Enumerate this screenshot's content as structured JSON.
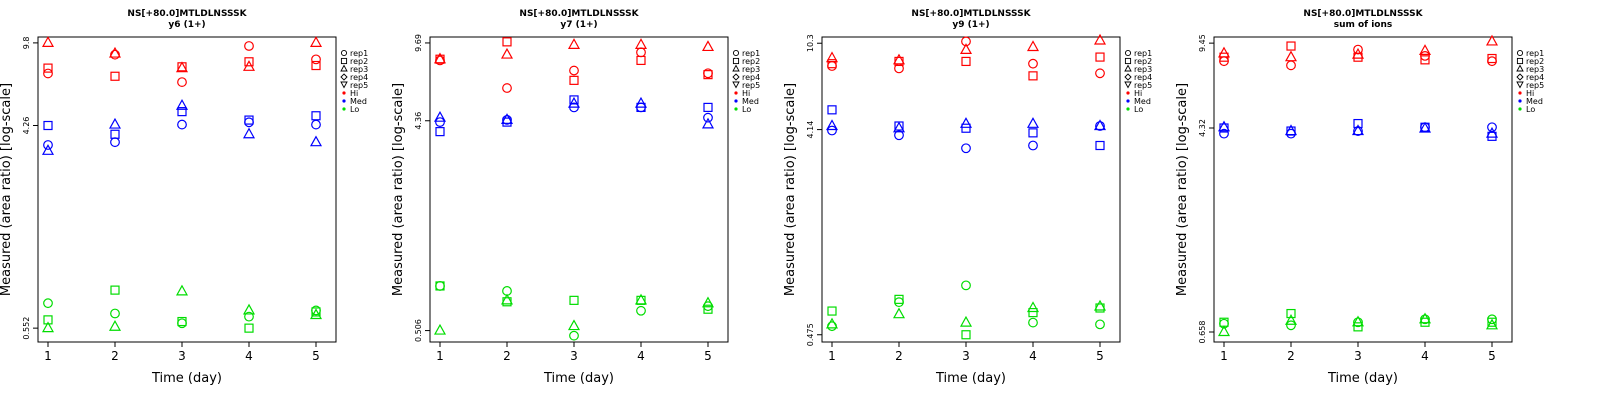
{
  "colors": {
    "Hi": "#ff0000",
    "Med": "#0000ff",
    "Lo": "#00dd00"
  },
  "legend": {
    "placement": "right",
    "reps": [
      {
        "label": "rep1",
        "shape": "circle"
      },
      {
        "label": "rep2",
        "shape": "square"
      },
      {
        "label": "rep3",
        "shape": "triangle-up"
      },
      {
        "label": "rep4",
        "shape": "diamond"
      },
      {
        "label": "rep5",
        "shape": "triangle-down"
      }
    ],
    "groups": [
      "Hi",
      "Med",
      "Lo"
    ]
  },
  "chart_data": [
    {
      "type": "scatter",
      "title": "NS[+80.0]MTLDLNSSSK",
      "subtitle": "y6 (1+)",
      "xlabel": "Time (day)",
      "ylabel": "Measured (area ratio) [log-scale]",
      "log_y": true,
      "x_ticks": [
        1,
        2,
        3,
        4,
        5
      ],
      "y_ticks": [
        0.552,
        4.26,
        9.8
      ],
      "ylim": [
        0.48,
        10.4
      ],
      "grid": false,
      "series": [
        {
          "name": "rep1",
          "group": "Hi",
          "x": [
            1,
            2,
            3,
            4,
            5
          ],
          "y": [
            7.2,
            8.7,
            6.6,
            9.5,
            8.3
          ]
        },
        {
          "name": "rep2",
          "group": "Hi",
          "x": [
            1,
            2,
            3,
            4,
            5
          ],
          "y": [
            7.6,
            7.0,
            7.7,
            8.1,
            7.8
          ]
        },
        {
          "name": "rep3",
          "group": "Hi",
          "x": [
            1,
            2,
            3,
            4,
            5
          ],
          "y": [
            9.8,
            8.8,
            7.6,
            7.7,
            9.8
          ]
        },
        {
          "name": "rep1",
          "group": "Med",
          "x": [
            1,
            2,
            3,
            4,
            5
          ],
          "y": [
            3.5,
            3.6,
            4.3,
            4.4,
            4.3
          ]
        },
        {
          "name": "rep2",
          "group": "Med",
          "x": [
            1,
            2,
            3,
            4,
            5
          ],
          "y": [
            4.26,
            3.9,
            4.9,
            4.5,
            4.7
          ]
        },
        {
          "name": "rep3",
          "group": "Med",
          "x": [
            1,
            2,
            3,
            4,
            5
          ],
          "y": [
            3.3,
            4.3,
            5.2,
            3.9,
            3.6
          ]
        },
        {
          "name": "rep1",
          "group": "Lo",
          "x": [
            1,
            2,
            3,
            4,
            5
          ],
          "y": [
            0.71,
            0.64,
            0.58,
            0.62,
            0.66
          ]
        },
        {
          "name": "rep2",
          "group": "Lo",
          "x": [
            1,
            2,
            3,
            4,
            5
          ],
          "y": [
            0.6,
            0.81,
            0.59,
            0.552,
            0.65
          ]
        },
        {
          "name": "rep3",
          "group": "Lo",
          "x": [
            1,
            2,
            3,
            4,
            5
          ],
          "y": [
            0.552,
            0.56,
            0.8,
            0.66,
            0.63
          ]
        }
      ]
    },
    {
      "type": "scatter",
      "title": "NS[+80.0]MTLDLNSSSK",
      "subtitle": "y7 (1+)",
      "xlabel": "Time (day)",
      "ylabel": "Measured (area ratio) [log-scale]",
      "log_y": true,
      "x_ticks": [
        1,
        2,
        3,
        4,
        5
      ],
      "y_ticks": [
        0.506,
        4.36,
        9.69
      ],
      "ylim": [
        0.45,
        10.3
      ],
      "grid": false,
      "series": [
        {
          "name": "rep1",
          "group": "Hi",
          "x": [
            1,
            2,
            3,
            4,
            5
          ],
          "y": [
            8.1,
            6.1,
            7.3,
            8.8,
            7.1
          ]
        },
        {
          "name": "rep2",
          "group": "Hi",
          "x": [
            1,
            2,
            3,
            4,
            5
          ],
          "y": [
            8.2,
            9.8,
            6.6,
            8.1,
            7.0
          ]
        },
        {
          "name": "rep3",
          "group": "Hi",
          "x": [
            1,
            2,
            3,
            4,
            5
          ],
          "y": [
            8.2,
            8.6,
            9.5,
            9.5,
            9.3
          ]
        },
        {
          "name": "rep1",
          "group": "Med",
          "x": [
            1,
            2,
            3,
            4,
            5
          ],
          "y": [
            4.3,
            4.4,
            5.0,
            5.0,
            4.5
          ]
        },
        {
          "name": "rep2",
          "group": "Med",
          "x": [
            1,
            2,
            3,
            4,
            5
          ],
          "y": [
            3.9,
            4.3,
            5.4,
            5.0,
            5.0
          ]
        },
        {
          "name": "rep3",
          "group": "Med",
          "x": [
            1,
            2,
            3,
            4,
            5
          ],
          "y": [
            4.5,
            4.4,
            5.2,
            5.2,
            4.2
          ]
        },
        {
          "name": "rep1",
          "group": "Lo",
          "x": [
            1,
            2,
            3,
            4,
            5
          ],
          "y": [
            0.8,
            0.76,
            0.48,
            0.62,
            0.65
          ]
        },
        {
          "name": "rep2",
          "group": "Lo",
          "x": [
            1,
            2,
            3,
            4,
            5
          ],
          "y": [
            0.8,
            0.68,
            0.69,
            0.69,
            0.63
          ]
        },
        {
          "name": "rep3",
          "group": "Lo",
          "x": [
            1,
            2,
            3,
            4,
            5
          ],
          "y": [
            0.506,
            0.69,
            0.53,
            0.69,
            0.67
          ]
        }
      ]
    },
    {
      "type": "scatter",
      "title": "NS[+80.0]MTLDLNSSSK",
      "subtitle": "y9 (1+)",
      "xlabel": "Time (day)",
      "ylabel": "Measured (area ratio) [log-scale]",
      "log_y": true,
      "x_ticks": [
        1,
        2,
        3,
        4,
        5
      ],
      "y_ticks": [
        0.475,
        4.14,
        10.3
      ],
      "ylim": [
        0.44,
        11.0
      ],
      "grid": false,
      "series": [
        {
          "name": "rep1",
          "group": "Hi",
          "x": [
            1,
            2,
            3,
            4,
            5
          ],
          "y": [
            8.1,
            7.9,
            10.5,
            8.3,
            7.5
          ]
        },
        {
          "name": "rep2",
          "group": "Hi",
          "x": [
            1,
            2,
            3,
            4,
            5
          ],
          "y": [
            8.3,
            8.5,
            8.5,
            7.3,
            8.9
          ]
        },
        {
          "name": "rep3",
          "group": "Hi",
          "x": [
            1,
            2,
            3,
            4,
            5
          ],
          "y": [
            8.8,
            8.6,
            9.6,
            9.9,
            10.6
          ]
        },
        {
          "name": "rep1",
          "group": "Med",
          "x": [
            1,
            2,
            3,
            4,
            5
          ],
          "y": [
            4.1,
            3.9,
            3.4,
            3.5,
            4.3
          ]
        },
        {
          "name": "rep2",
          "group": "Med",
          "x": [
            1,
            2,
            3,
            4,
            5
          ],
          "y": [
            5.1,
            4.3,
            4.2,
            4.0,
            3.5
          ]
        },
        {
          "name": "rep3",
          "group": "Med",
          "x": [
            1,
            2,
            3,
            4,
            5
          ],
          "y": [
            4.3,
            4.2,
            4.4,
            4.4,
            4.3
          ]
        },
        {
          "name": "rep1",
          "group": "Lo",
          "x": [
            1,
            2,
            3,
            4,
            5
          ],
          "y": [
            0.52,
            0.67,
            0.8,
            0.54,
            0.53
          ]
        },
        {
          "name": "rep2",
          "group": "Lo",
          "x": [
            1,
            2,
            3,
            4,
            5
          ],
          "y": [
            0.61,
            0.69,
            0.475,
            0.6,
            0.63
          ]
        },
        {
          "name": "rep3",
          "group": "Lo",
          "x": [
            1,
            2,
            3,
            4,
            5
          ],
          "y": [
            0.53,
            0.59,
            0.54,
            0.63,
            0.64
          ]
        }
      ]
    },
    {
      "type": "scatter",
      "title": "NS[+80.0]MTLDLNSSSK",
      "subtitle": "sum of ions",
      "xlabel": "Time (day)",
      "ylabel": "Measured (area ratio) [log-scale]",
      "log_y": true,
      "x_ticks": [
        1,
        2,
        3,
        4,
        5
      ],
      "y_ticks": [
        0.658,
        4.32,
        9.45
      ],
      "ylim": [
        0.6,
        10.0
      ],
      "grid": false,
      "series": [
        {
          "name": "rep1",
          "group": "Hi",
          "x": [
            1,
            2,
            3,
            4,
            5
          ],
          "y": [
            8.0,
            7.7,
            8.9,
            8.4,
            8.0
          ]
        },
        {
          "name": "rep2",
          "group": "Hi",
          "x": [
            1,
            2,
            3,
            4,
            5
          ],
          "y": [
            8.3,
            9.2,
            8.3,
            8.1,
            8.2
          ]
        },
        {
          "name": "rep3",
          "group": "Hi",
          "x": [
            1,
            2,
            3,
            4,
            5
          ],
          "y": [
            8.6,
            8.3,
            8.5,
            8.8,
            9.6
          ]
        },
        {
          "name": "rep1",
          "group": "Med",
          "x": [
            1,
            2,
            3,
            4,
            5
          ],
          "y": [
            4.1,
            4.1,
            4.2,
            4.35,
            4.35
          ]
        },
        {
          "name": "rep2",
          "group": "Med",
          "x": [
            1,
            2,
            3,
            4,
            5
          ],
          "y": [
            4.32,
            4.2,
            4.5,
            4.35,
            4.0
          ]
        },
        {
          "name": "rep3",
          "group": "Med",
          "x": [
            1,
            2,
            3,
            4,
            5
          ],
          "y": [
            4.35,
            4.2,
            4.2,
            4.3,
            4.1
          ]
        },
        {
          "name": "rep1",
          "group": "Lo",
          "x": [
            1,
            2,
            3,
            4,
            5
          ],
          "y": [
            0.71,
            0.7,
            0.72,
            0.74,
            0.74
          ]
        },
        {
          "name": "rep2",
          "group": "Lo",
          "x": [
            1,
            2,
            3,
            4,
            5
          ],
          "y": [
            0.72,
            0.78,
            0.69,
            0.72,
            0.72
          ]
        },
        {
          "name": "rep3",
          "group": "Lo",
          "x": [
            1,
            2,
            3,
            4,
            5
          ],
          "y": [
            0.658,
            0.73,
            0.72,
            0.74,
            0.7
          ]
        }
      ]
    }
  ]
}
